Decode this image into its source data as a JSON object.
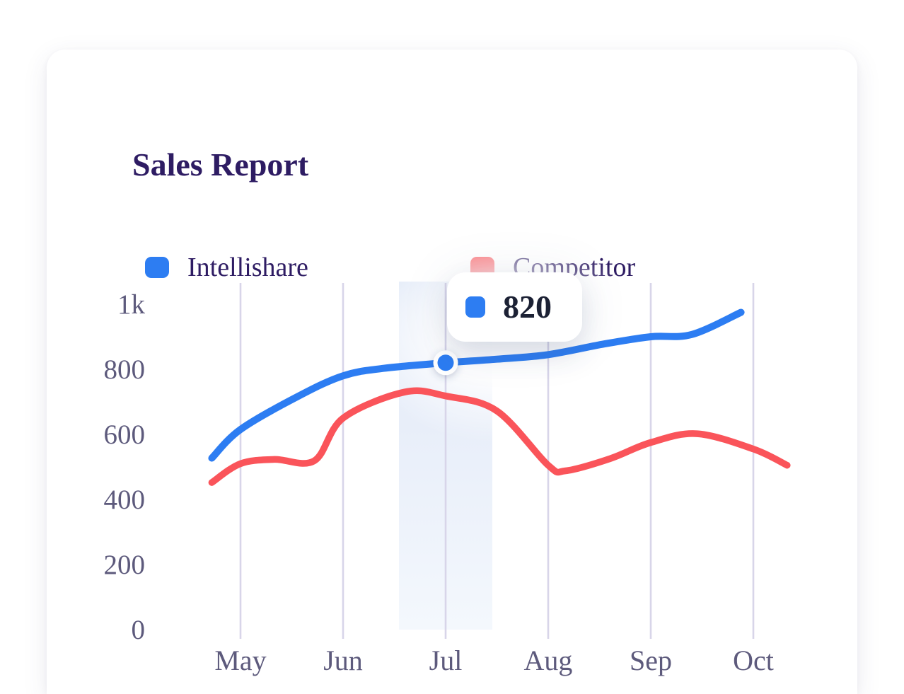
{
  "card": {
    "title": "Sales Report"
  },
  "legend": {
    "items": [
      {
        "label": "Intellishare",
        "color": "#2D7DF2"
      },
      {
        "label": "Competitor",
        "color": "#FA545A"
      }
    ]
  },
  "tooltip": {
    "value": "820",
    "series": "Intellishare",
    "series_color": "#2D7DF2"
  },
  "chart_data": {
    "type": "line",
    "title": "Sales Report",
    "categories": [
      "May",
      "Jun",
      "Jul",
      "Aug",
      "Sep",
      "Oct"
    ],
    "series": [
      {
        "name": "Intellishare",
        "color": "#2D7DF2",
        "stroke_width": 10,
        "values": [
          615,
          780,
          820,
          845,
          900,
          965
        ],
        "curve_points": [
          [
            -0.28,
            527
          ],
          [
            0,
            615
          ],
          [
            0.55,
            715
          ],
          [
            1,
            780
          ],
          [
            1.4,
            803
          ],
          [
            2,
            820
          ],
          [
            2.5,
            831
          ],
          [
            3,
            845
          ],
          [
            3.55,
            878
          ],
          [
            4,
            900
          ],
          [
            4.4,
            907
          ],
          [
            4.88,
            975
          ]
        ]
      },
      {
        "name": "Competitor",
        "color": "#FA545A",
        "stroke_width": 9.5,
        "values": [
          510,
          650,
          720,
          505,
          575,
          555
        ],
        "curve_points": [
          [
            -0.28,
            452
          ],
          [
            0,
            510
          ],
          [
            0.33,
            523
          ],
          [
            0.72,
            519
          ],
          [
            1,
            650
          ],
          [
            1.6,
            730
          ],
          [
            2,
            718
          ],
          [
            2.5,
            672
          ],
          [
            3,
            505
          ],
          [
            3.17,
            488
          ],
          [
            3.6,
            525
          ],
          [
            4,
            575
          ],
          [
            4.45,
            602
          ],
          [
            5,
            555
          ],
          [
            5.33,
            505
          ]
        ]
      }
    ],
    "y_ticks": [
      {
        "label": "1k",
        "value": 1000
      },
      {
        "label": "800",
        "value": 800
      },
      {
        "label": "600",
        "value": 600
      },
      {
        "label": "400",
        "value": 400
      },
      {
        "label": "200",
        "value": 200
      },
      {
        "label": "0",
        "value": 0
      }
    ],
    "ylim": [
      0,
      1000
    ],
    "grid": "vertical-only",
    "legend_position": "top",
    "highlighted_category": "Jul",
    "marker": {
      "series": "Intellishare",
      "category": "Jul",
      "value": 820
    },
    "axis_color": "#5d5a7c",
    "gridline_color": "#d8d5e9"
  }
}
